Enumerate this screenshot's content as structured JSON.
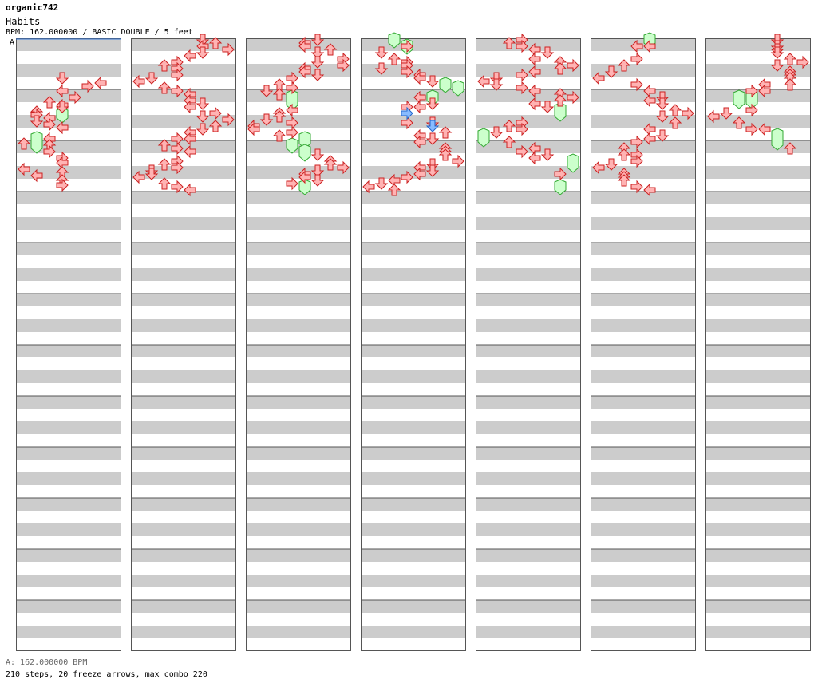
{
  "header": {
    "user": "organic742",
    "title": "Habits",
    "info": "BPM: 162.000000 / BASIC DOUBLE / 5 feet"
  },
  "footer": {
    "bpm": "A: 162.000000 BPM",
    "stats": "210 steps, 20 freeze arrows, max combo 220"
  },
  "chart_data": {
    "type": "step-chart",
    "bpm_marker": {
      "label": "A",
      "measure": 0
    },
    "bpm": 162.0,
    "mode": "BASIC DOUBLE",
    "difficulty_feet": 5,
    "steps": 210,
    "freeze_arrows": 20,
    "max_combo": 220,
    "lanes": [
      "L1",
      "D1",
      "U1",
      "R1",
      "L2",
      "D2",
      "U2",
      "R2"
    ],
    "columns": 7,
    "measures_per_column": 12,
    "arrow_color": "#ffb3b3",
    "arrow_stroke": "#cc2222",
    "freeze_color": "#ccffcc",
    "freeze_stroke": "#33aa33",
    "special_color": "#88bbff",
    "special_stroke": "#2266cc",
    "notes": [
      [
        0,
        3.125,
        3,
        "D"
      ],
      [
        0,
        3.5,
        6,
        "L"
      ],
      [
        0,
        3.75,
        5,
        "R"
      ],
      [
        0,
        4.125,
        3,
        "L"
      ],
      [
        0,
        4.625,
        4,
        "R"
      ],
      [
        0,
        5.0,
        2,
        "U"
      ],
      [
        0,
        5.25,
        3,
        "L"
      ],
      [
        0,
        5.375,
        3,
        "D"
      ],
      [
        0,
        5.75,
        1,
        "U"
      ],
      [
        0,
        6.0,
        1,
        "R"
      ],
      [
        0,
        6.25,
        2,
        "L"
      ],
      [
        0,
        6.5,
        1,
        "D"
      ],
      [
        0,
        6.75,
        2,
        "R"
      ],
      [
        0,
        7.0,
        3,
        "L"
      ],
      [
        0,
        7.875,
        2,
        "L"
      ],
      [
        0,
        8.25,
        0,
        "U"
      ],
      [
        0,
        8.375,
        2,
        "U"
      ],
      [
        0,
        8.875,
        2,
        "R"
      ],
      [
        0,
        9.375,
        3,
        "R"
      ],
      [
        0,
        9.75,
        3,
        "L"
      ],
      [
        0,
        10.25,
        0,
        "L"
      ],
      [
        0,
        10.5,
        3,
        "U"
      ],
      [
        0,
        10.75,
        1,
        "L"
      ],
      [
        0,
        11.125,
        3,
        "U"
      ],
      [
        0,
        11.5,
        3,
        "R"
      ],
      [
        1,
        0.125,
        5,
        "D"
      ],
      [
        1,
        0.375,
        6,
        "U"
      ],
      [
        1,
        0.625,
        5,
        "L"
      ],
      [
        1,
        0.875,
        7,
        "R"
      ],
      [
        1,
        1.125,
        5,
        "D"
      ],
      [
        1,
        1.375,
        4,
        "L"
      ],
      [
        1,
        1.875,
        3,
        "R"
      ],
      [
        1,
        2.125,
        2,
        "U"
      ],
      [
        1,
        2.375,
        3,
        "R"
      ],
      [
        1,
        2.875,
        3,
        "R"
      ],
      [
        1,
        3.125,
        1,
        "D"
      ],
      [
        1,
        3.375,
        0,
        "L"
      ],
      [
        1,
        3.875,
        2,
        "U"
      ],
      [
        1,
        4.125,
        3,
        "R"
      ],
      [
        1,
        4.375,
        4,
        "L"
      ],
      [
        1,
        4.875,
        4,
        "L"
      ],
      [
        1,
        5.125,
        5,
        "D"
      ],
      [
        1,
        5.375,
        4,
        "L"
      ],
      [
        1,
        5.875,
        6,
        "R"
      ],
      [
        1,
        6.125,
        5,
        "D"
      ],
      [
        1,
        6.375,
        7,
        "R"
      ],
      [
        1,
        6.875,
        6,
        "U"
      ],
      [
        1,
        7.125,
        5,
        "D"
      ],
      [
        1,
        7.375,
        4,
        "L"
      ],
      [
        1,
        7.875,
        3,
        "R"
      ],
      [
        1,
        7.875,
        4,
        "L"
      ],
      [
        1,
        8.375,
        2,
        "U"
      ],
      [
        1,
        8.625,
        3,
        "R"
      ],
      [
        1,
        8.875,
        4,
        "L"
      ],
      [
        1,
        9.625,
        3,
        "R"
      ],
      [
        1,
        9.875,
        2,
        "U"
      ],
      [
        1,
        10.125,
        3,
        "R"
      ],
      [
        1,
        10.375,
        1,
        "D"
      ],
      [
        1,
        10.625,
        1,
        "D"
      ],
      [
        1,
        10.875,
        0,
        "L"
      ],
      [
        1,
        11.375,
        2,
        "U"
      ],
      [
        1,
        11.625,
        3,
        "R"
      ],
      [
        1,
        11.875,
        4,
        "L"
      ],
      [
        2,
        0.125,
        5,
        "D"
      ],
      [
        2,
        0.375,
        4,
        "L"
      ],
      [
        2,
        0.625,
        4,
        "L"
      ],
      [
        2,
        0.875,
        6,
        "U"
      ],
      [
        2,
        1.125,
        5,
        "D"
      ],
      [
        2,
        1.625,
        7,
        "R"
      ],
      [
        2,
        1.875,
        5,
        "D"
      ],
      [
        2,
        2.125,
        7,
        "R"
      ],
      [
        2,
        2.375,
        4,
        "L"
      ],
      [
        2,
        2.625,
        4,
        "L"
      ],
      [
        2,
        2.875,
        5,
        "D"
      ],
      [
        2,
        3.125,
        3,
        "R"
      ],
      [
        2,
        3.625,
        2,
        "U"
      ],
      [
        2,
        3.875,
        3,
        "R"
      ],
      [
        2,
        4.125,
        1,
        "D"
      ],
      [
        2,
        4.375,
        2,
        "U"
      ],
      [
        2,
        5.625,
        3,
        "L"
      ],
      [
        2,
        5.875,
        2,
        "U"
      ],
      [
        2,
        6.125,
        2,
        "U"
      ],
      [
        2,
        6.375,
        1,
        "D"
      ],
      [
        2,
        6.625,
        3,
        "R"
      ],
      [
        2,
        6.875,
        0,
        "L"
      ],
      [
        2,
        7.125,
        0,
        "L"
      ],
      [
        2,
        7.375,
        3,
        "R"
      ],
      [
        2,
        7.625,
        2,
        "U"
      ],
      [
        2,
        9.125,
        5,
        "D"
      ],
      [
        2,
        9.625,
        6,
        "U"
      ],
      [
        2,
        9.875,
        6,
        "U"
      ],
      [
        2,
        10.125,
        7,
        "R"
      ],
      [
        2,
        10.375,
        5,
        "D"
      ],
      [
        2,
        10.625,
        4,
        "L"
      ],
      [
        2,
        10.875,
        4,
        "L"
      ],
      [
        2,
        11.125,
        5,
        "D"
      ],
      [
        2,
        11.375,
        3,
        "R"
      ],
      [
        3,
        0.625,
        3,
        "R"
      ],
      [
        3,
        1.125,
        1,
        "D"
      ],
      [
        3,
        1.625,
        2,
        "U"
      ],
      [
        3,
        1.875,
        3,
        "R"
      ],
      [
        3,
        2.125,
        3,
        "R"
      ],
      [
        3,
        2.375,
        1,
        "D"
      ],
      [
        3,
        2.625,
        3,
        "R"
      ],
      [
        3,
        2.875,
        4,
        "L"
      ],
      [
        3,
        3.125,
        4,
        "L"
      ],
      [
        3,
        3.375,
        5,
        "D"
      ],
      [
        3,
        4.625,
        4,
        "L"
      ],
      [
        3,
        5.125,
        5,
        "D"
      ],
      [
        3,
        5.375,
        3,
        "R"
      ],
      [
        3,
        5.375,
        4,
        "L"
      ],
      [
        3,
        6.625,
        3,
        "R"
      ],
      [
        3,
        6.625,
        5,
        "D"
      ],
      [
        3,
        7.375,
        6,
        "U"
      ],
      [
        3,
        7.625,
        4,
        "L"
      ],
      [
        3,
        7.875,
        5,
        "D"
      ],
      [
        3,
        8.125,
        4,
        "L"
      ],
      [
        3,
        8.625,
        6,
        "U"
      ],
      [
        3,
        8.875,
        6,
        "U"
      ],
      [
        3,
        9.125,
        6,
        "U"
      ],
      [
        3,
        9.625,
        7,
        "R"
      ],
      [
        3,
        9.875,
        5,
        "D"
      ],
      [
        3,
        10.125,
        4,
        "L"
      ],
      [
        3,
        10.375,
        5,
        "D"
      ],
      [
        3,
        10.625,
        4,
        "L"
      ],
      [
        3,
        10.875,
        3,
        "R"
      ],
      [
        3,
        11.125,
        2,
        "L"
      ],
      [
        3,
        11.375,
        1,
        "D"
      ],
      [
        3,
        11.625,
        0,
        "L"
      ],
      [
        3,
        11.875,
        2,
        "U"
      ],
      [
        4,
        0.125,
        3,
        "R"
      ],
      [
        4,
        0.375,
        2,
        "U"
      ],
      [
        4,
        0.625,
        3,
        "R"
      ],
      [
        4,
        0.875,
        4,
        "L"
      ],
      [
        4,
        1.125,
        5,
        "D"
      ],
      [
        4,
        1.625,
        4,
        "L"
      ],
      [
        4,
        1.875,
        6,
        "U"
      ],
      [
        4,
        2.125,
        7,
        "R"
      ],
      [
        4,
        2.375,
        6,
        "U"
      ],
      [
        4,
        2.625,
        4,
        "L"
      ],
      [
        4,
        2.875,
        3,
        "R"
      ],
      [
        4,
        3.125,
        1,
        "D"
      ],
      [
        4,
        3.375,
        0,
        "L"
      ],
      [
        4,
        3.625,
        1,
        "D"
      ],
      [
        4,
        3.875,
        3,
        "R"
      ],
      [
        4,
        4.125,
        4,
        "L"
      ],
      [
        4,
        4.375,
        6,
        "U"
      ],
      [
        4,
        4.625,
        7,
        "R"
      ],
      [
        4,
        4.875,
        6,
        "U"
      ],
      [
        4,
        5.125,
        4,
        "L"
      ],
      [
        4,
        5.375,
        5,
        "D"
      ],
      [
        4,
        6.625,
        3,
        "R"
      ],
      [
        4,
        6.875,
        2,
        "U"
      ],
      [
        4,
        7.125,
        3,
        "R"
      ],
      [
        4,
        7.375,
        1,
        "D"
      ],
      [
        4,
        8.125,
        2,
        "U"
      ],
      [
        4,
        8.625,
        4,
        "L"
      ],
      [
        4,
        8.875,
        3,
        "R"
      ],
      [
        4,
        9.125,
        5,
        "D"
      ],
      [
        4,
        9.375,
        4,
        "L"
      ],
      [
        4,
        10.625,
        6,
        "R"
      ],
      [
        5,
        0.625,
        3,
        "L"
      ],
      [
        5,
        0.625,
        4,
        "L"
      ],
      [
        5,
        1.625,
        3,
        "R"
      ],
      [
        5,
        2.125,
        2,
        "U"
      ],
      [
        5,
        2.625,
        1,
        "D"
      ],
      [
        5,
        3.125,
        0,
        "L"
      ],
      [
        5,
        3.625,
        3,
        "R"
      ],
      [
        5,
        4.125,
        4,
        "L"
      ],
      [
        5,
        4.625,
        5,
        "D"
      ],
      [
        5,
        4.875,
        4,
        "L"
      ],
      [
        5,
        5.125,
        5,
        "D"
      ],
      [
        5,
        5.625,
        6,
        "U"
      ],
      [
        5,
        5.875,
        7,
        "R"
      ],
      [
        5,
        6.125,
        5,
        "D"
      ],
      [
        5,
        6.625,
        6,
        "U"
      ],
      [
        5,
        7.125,
        4,
        "L"
      ],
      [
        5,
        7.625,
        5,
        "D"
      ],
      [
        5,
        7.875,
        4,
        "L"
      ],
      [
        5,
        8.125,
        3,
        "R"
      ],
      [
        5,
        8.625,
        2,
        "U"
      ],
      [
        5,
        9.125,
        2,
        "U"
      ],
      [
        5,
        9.125,
        3,
        "R"
      ],
      [
        5,
        9.625,
        3,
        "R"
      ],
      [
        5,
        9.875,
        1,
        "D"
      ],
      [
        5,
        10.125,
        0,
        "L"
      ],
      [
        5,
        10.625,
        2,
        "U"
      ],
      [
        5,
        10.875,
        2,
        "U"
      ],
      [
        5,
        11.125,
        2,
        "U"
      ],
      [
        5,
        11.625,
        3,
        "R"
      ],
      [
        5,
        11.875,
        4,
        "L"
      ],
      [
        6,
        0.125,
        5,
        "D"
      ],
      [
        6,
        0.625,
        5,
        "D"
      ],
      [
        6,
        0.875,
        5,
        "D"
      ],
      [
        6,
        1.125,
        5,
        "D"
      ],
      [
        6,
        1.625,
        6,
        "U"
      ],
      [
        6,
        1.875,
        7,
        "R"
      ],
      [
        6,
        2.125,
        5,
        "D"
      ],
      [
        6,
        2.625,
        6,
        "U"
      ],
      [
        6,
        2.875,
        6,
        "U"
      ],
      [
        6,
        3.125,
        6,
        "U"
      ],
      [
        6,
        3.625,
        4,
        "L"
      ],
      [
        6,
        3.625,
        6,
        "U"
      ],
      [
        6,
        4.125,
        3,
        "R"
      ],
      [
        6,
        4.125,
        4,
        "L"
      ],
      [
        6,
        5.625,
        3,
        "R"
      ],
      [
        6,
        5.875,
        1,
        "D"
      ],
      [
        6,
        6.125,
        0,
        "L"
      ],
      [
        6,
        6.625,
        2,
        "U"
      ],
      [
        6,
        7.125,
        3,
        "R"
      ],
      [
        6,
        7.125,
        4,
        "L"
      ],
      [
        6,
        8.625,
        6,
        "U"
      ]
    ],
    "freezes": [
      [
        0,
        6.0,
        6.25,
        3
      ],
      [
        0,
        7.875,
        8.625,
        1
      ],
      [
        2,
        4.625,
        5.25,
        3
      ],
      [
        2,
        7.875,
        8.25,
        4
      ],
      [
        2,
        8.375,
        8.625,
        3
      ],
      [
        2,
        8.875,
        9.25,
        4
      ],
      [
        2,
        11.625,
        11.875,
        4
      ],
      [
        3,
        0.125,
        0.375,
        2
      ],
      [
        3,
        0.625,
        0.875,
        3
      ],
      [
        3,
        3.625,
        3.875,
        6
      ],
      [
        3,
        3.875,
        4.125,
        7
      ],
      [
        3,
        4.625,
        4.875,
        5
      ],
      [
        4,
        5.625,
        6.125,
        6
      ],
      [
        4,
        7.625,
        8.125,
        0
      ],
      [
        4,
        9.625,
        10.125,
        7
      ],
      [
        4,
        11.625,
        11.875,
        6
      ],
      [
        5,
        0.125,
        0.375,
        4
      ],
      [
        6,
        4.625,
        5.125,
        2
      ],
      [
        6,
        4.625,
        5.125,
        3
      ],
      [
        6,
        7.625,
        8.375,
        5
      ]
    ],
    "special": [
      [
        3,
        5.875,
        3,
        "R"
      ],
      [
        3,
        6.875,
        5,
        "D"
      ]
    ]
  }
}
